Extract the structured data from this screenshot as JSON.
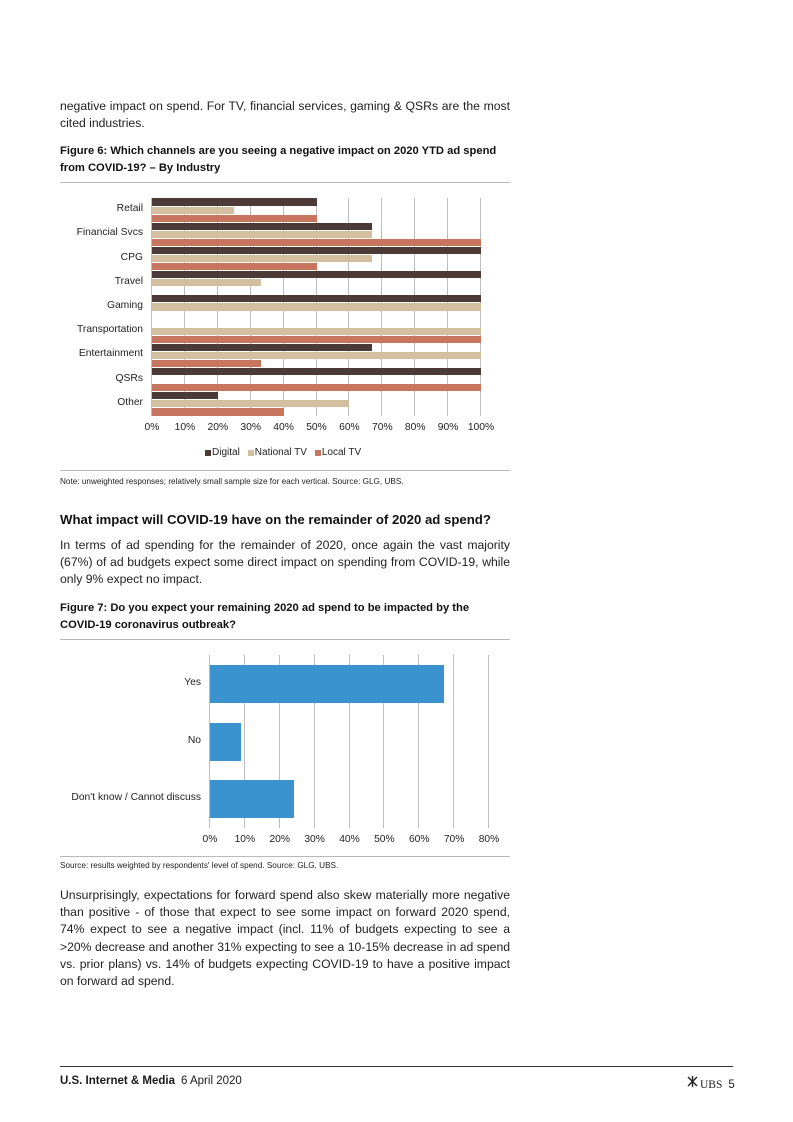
{
  "intro_text": "negative impact on spend. For TV, financial services, gaming & QSRs are the most cited industries.",
  "fig6": {
    "title": "Figure 6: Which channels are you seeing a negative impact on 2020 YTD ad spend from COVID-19? – By Industry",
    "note": "Note: unweighted responses; relatively small sample size for each vertical. Source: GLG, UBS.",
    "colors": {
      "Digital": "#4b3a35",
      "National TV": "#d2bfa0",
      "Local TV": "#c8755f"
    },
    "chart_data": {
      "type": "bar",
      "orientation": "horizontal",
      "categories": [
        "Retail",
        "Financial Svcs",
        "CPG",
        "Travel",
        "Gaming",
        "Transportation",
        "Entertainment",
        "QSRs",
        "Other"
      ],
      "series": [
        {
          "name": "Digital",
          "values": [
            50,
            67,
            100,
            100,
            100,
            0,
            67,
            100,
            20
          ]
        },
        {
          "name": "National TV",
          "values": [
            25,
            67,
            67,
            33,
            100,
            100,
            100,
            0,
            60
          ]
        },
        {
          "name": "Local TV",
          "values": [
            50,
            100,
            50,
            0,
            0,
            100,
            33,
            100,
            40
          ]
        }
      ],
      "x_ticks": [
        "0%",
        "10%",
        "20%",
        "30%",
        "40%",
        "50%",
        "60%",
        "70%",
        "80%",
        "90%",
        "100%"
      ],
      "xlim": [
        0,
        100
      ],
      "grid": true,
      "legend": "bottom"
    }
  },
  "section_heading": "What impact will COVID-19 have on the remainder of 2020 ad spend?",
  "section_para": "In terms of ad spending for the remainder of 2020, once again the vast majority (67%) of ad budgets expect some direct impact on spending from COVID-19, while only 9% expect no impact.",
  "fig7": {
    "title": "Figure 7: Do you expect your remaining 2020 ad spend to be impacted by the COVID-19 coronavirus outbreak?",
    "note": "Source: results weighted by respondents' level of spend. Source: GLG, UBS.",
    "color": "#3a92cf",
    "chart_data": {
      "type": "bar",
      "orientation": "horizontal",
      "categories": [
        "Yes",
        "No",
        "Don't know / Cannot discuss"
      ],
      "values": [
        67,
        9,
        24
      ],
      "x_ticks": [
        "0%",
        "10%",
        "20%",
        "30%",
        "40%",
        "50%",
        "60%",
        "70%",
        "80%"
      ],
      "xlim": [
        0,
        80
      ],
      "grid": true
    }
  },
  "closing_para": "Unsurprisingly, expectations for forward spend also skew materially more negative than positive - of those that expect to see some impact on forward 2020 spend, 74% expect to see a negative impact (incl. 11% of budgets expecting to see a >20% decrease and another 31% expecting to see a 10-15% decrease in ad spend vs. prior plans) vs. 14% of budgets expecting COVID-19 to have a positive impact on forward ad spend.",
  "footer": {
    "title": "U.S. Internet & Media",
    "date": "6 April 2020",
    "logo_text": "UBS",
    "page": "5"
  }
}
